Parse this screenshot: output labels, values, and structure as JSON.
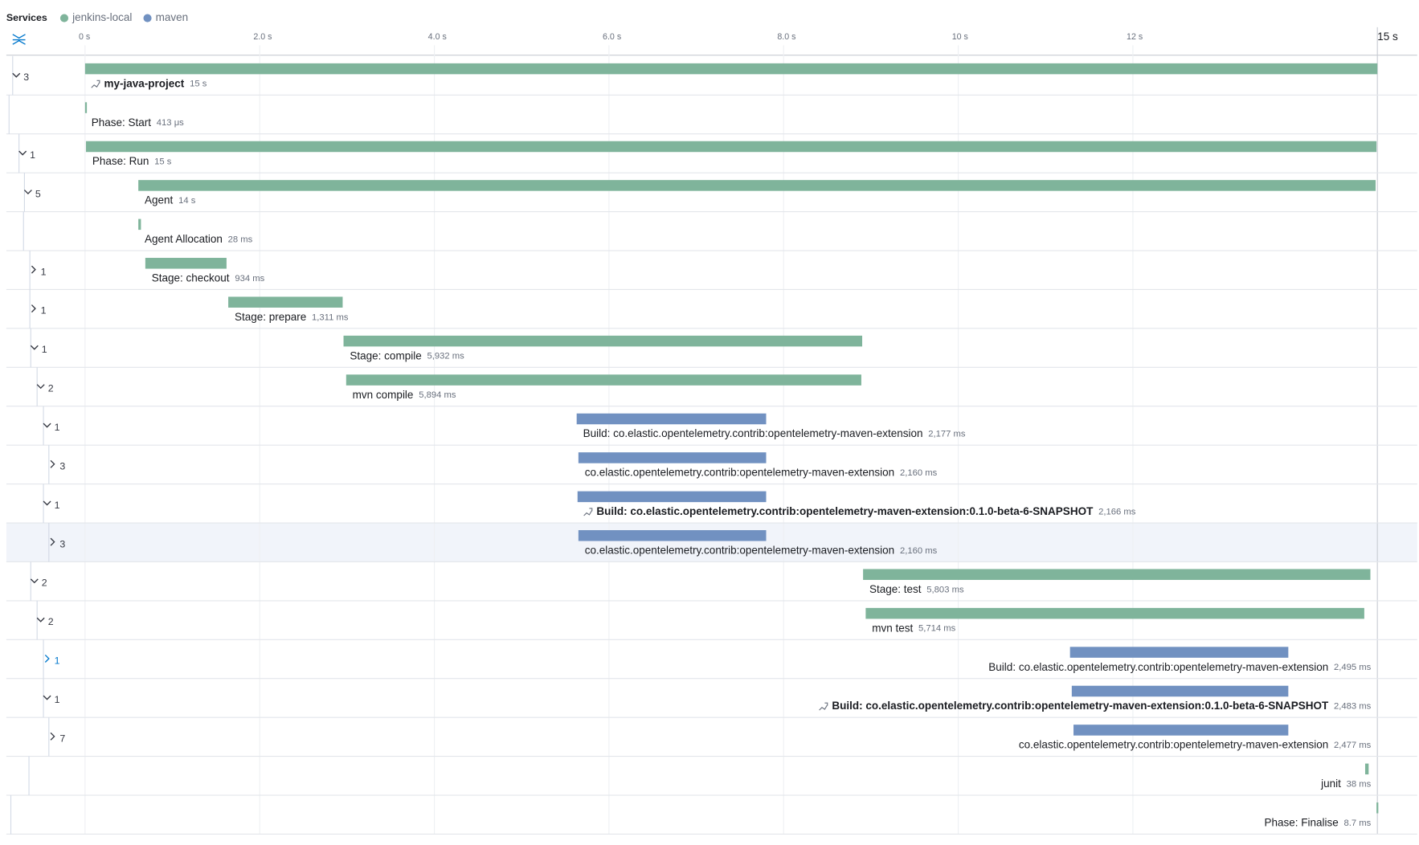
{
  "header": {
    "title": "Services"
  },
  "services": [
    {
      "name": "jenkins-local",
      "color": "#7fb49b"
    },
    {
      "name": "maven",
      "color": "#7191c1"
    }
  ],
  "timeline": {
    "xlim": [
      0,
      14.8
    ],
    "ticks": [
      {
        "value": 0,
        "label": "0 s"
      },
      {
        "value": 2,
        "label": "2.0 s"
      },
      {
        "value": 4,
        "label": "4.0 s"
      },
      {
        "value": 6,
        "label": "6.0 s"
      },
      {
        "value": 8,
        "label": "8.0 s"
      },
      {
        "value": 10,
        "label": "10 s"
      },
      {
        "value": 12,
        "label": "12 s"
      },
      {
        "value": 14.8,
        "label": "15 s"
      }
    ]
  },
  "spans": [
    {
      "name": "my-java-project",
      "duration": "15 s",
      "service": 0,
      "start": 0,
      "end": 14.8,
      "children": 3,
      "expanded": true,
      "root": true
    },
    {
      "name": "Phase: Start",
      "duration": "413 μs",
      "service": 0,
      "start": 0,
      "end": 0.02
    },
    {
      "name": "Phase: Run",
      "duration": "15 s",
      "service": 0,
      "start": 0.01,
      "end": 14.79,
      "children": 1,
      "expanded": true
    },
    {
      "name": "Agent",
      "duration": "14 s",
      "service": 0,
      "start": 0.61,
      "end": 14.78,
      "children": 5,
      "expanded": true
    },
    {
      "name": "Agent Allocation",
      "duration": "28 ms",
      "service": 0,
      "start": 0.61,
      "end": 0.64
    },
    {
      "name": "Stage: checkout",
      "duration": "934 ms",
      "service": 0,
      "start": 0.69,
      "end": 1.62,
      "children": 1,
      "expanded": false
    },
    {
      "name": "Stage: prepare",
      "duration": "1,311 ms",
      "service": 0,
      "start": 1.64,
      "end": 2.95,
      "children": 1,
      "expanded": false
    },
    {
      "name": "Stage: compile",
      "duration": "5,932 ms",
      "service": 0,
      "start": 2.96,
      "end": 8.9,
      "children": 1,
      "expanded": true
    },
    {
      "name": "mvn compile",
      "duration": "5,894 ms",
      "service": 0,
      "start": 2.99,
      "end": 8.89,
      "children": 2,
      "expanded": true
    },
    {
      "name": "Build: co.elastic.opentelemetry.contrib:opentelemetry-maven-extension",
      "duration": "2,177 ms",
      "service": 1,
      "start": 5.63,
      "end": 7.8,
      "children": 1,
      "expanded": true
    },
    {
      "name": "co.elastic.opentelemetry.contrib:opentelemetry-maven-extension",
      "duration": "2,160 ms",
      "service": 1,
      "start": 5.65,
      "end": 7.8,
      "children": 3,
      "expanded": false
    },
    {
      "name": "Build: co.elastic.opentelemetry.contrib:opentelemetry-maven-extension:0.1.0-beta-6-SNAPSHOT",
      "duration": "2,166 ms",
      "service": 1,
      "start": 5.64,
      "end": 7.8,
      "children": 1,
      "expanded": true,
      "root": true
    },
    {
      "name": "co.elastic.opentelemetry.contrib:opentelemetry-maven-extension",
      "duration": "2,160 ms",
      "service": 1,
      "start": 5.65,
      "end": 7.8,
      "children": 3,
      "expanded": false,
      "selected": true
    },
    {
      "name": "Stage: test",
      "duration": "5,803 ms",
      "service": 0,
      "start": 8.91,
      "end": 14.72,
      "children": 2,
      "expanded": true
    },
    {
      "name": "mvn test",
      "duration": "5,714 ms",
      "service": 0,
      "start": 8.94,
      "end": 14.65,
      "children": 2,
      "expanded": true
    },
    {
      "name": "Build: co.elastic.opentelemetry.contrib:opentelemetry-maven-extension",
      "duration": "2,495 ms",
      "service": 1,
      "start": 11.28,
      "end": 13.78,
      "children": 1,
      "expanded": false
    },
    {
      "name": "Build: co.elastic.opentelemetry.contrib:opentelemetry-maven-extension:0.1.0-beta-6-SNAPSHOT",
      "duration": "2,483 ms",
      "service": 1,
      "start": 11.3,
      "end": 13.78,
      "children": 1,
      "expanded": true,
      "root": true
    },
    {
      "name": "co.elastic.opentelemetry.contrib:opentelemetry-maven-extension",
      "duration": "2,477 ms",
      "service": 1,
      "start": 11.32,
      "end": 13.78,
      "children": 7,
      "expanded": false
    },
    {
      "name": "junit",
      "duration": "38 ms",
      "service": 0,
      "start": 14.66,
      "end": 14.7
    },
    {
      "name": "Phase: Finalise",
      "duration": "8.7 ms",
      "service": 0,
      "start": 14.79,
      "end": 14.81
    }
  ]
}
